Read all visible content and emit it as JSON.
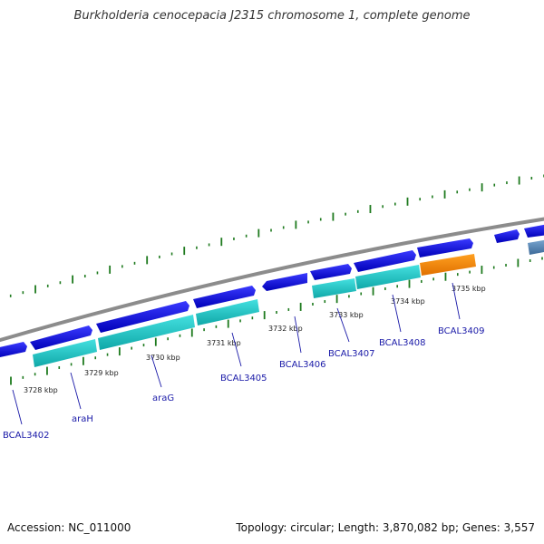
{
  "title": "Burkholderia cenocepacia J2315 chromosome 1, complete genome",
  "footer": {
    "accession_label": "Accession:",
    "accession": "NC_011000",
    "topology_label": "Topology:",
    "topology": "circular",
    "length_label": "Length:",
    "length": "3,870,082 bp",
    "genes_label": "Genes:",
    "genes": "3,557"
  },
  "scale_labels": [
    {
      "value": "3728 kbp"
    },
    {
      "value": "3729 kbp"
    },
    {
      "value": "3730 kbp"
    },
    {
      "value": "3731 kbp"
    },
    {
      "value": "3732 kbp"
    },
    {
      "value": "3733 kbp"
    },
    {
      "value": "3734 kbp"
    },
    {
      "value": "3735 kbp"
    }
  ],
  "gene_labels": [
    {
      "name": "BCAL3402"
    },
    {
      "name": "araH"
    },
    {
      "name": "araG"
    },
    {
      "name": "BCAL3405"
    },
    {
      "name": "BCAL3406"
    },
    {
      "name": "BCAL3407"
    },
    {
      "name": "BCAL3408"
    },
    {
      "name": "BCAL3409"
    }
  ],
  "colors": {
    "backbone": "#8c8c8c",
    "cds_forward": "#1a1aee",
    "gene_reverse": "#22cccc",
    "highlight": "#ff8c00",
    "other_feature": "#5588bb",
    "tick": "#1e7a1e",
    "label": "#1a1aa8"
  }
}
